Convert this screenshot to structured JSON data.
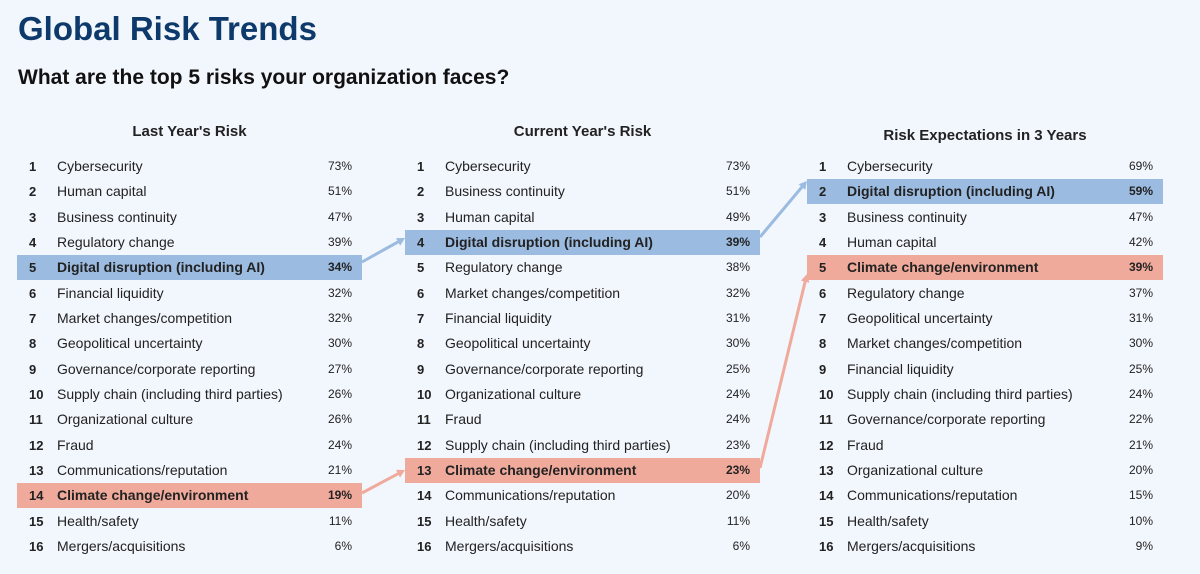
{
  "title": "Global Risk Trends",
  "subtitle": "What are the top 5 risks your organization faces?",
  "colors": {
    "highlight_blue": "#9bbbe0",
    "highlight_red": "#f0aa9c",
    "title": "#0d3a6b"
  },
  "panels": [
    {
      "header": "Last Year's Risk",
      "rows": [
        [
          "1",
          "Cybersecurity",
          "73%",
          ""
        ],
        [
          "2",
          "Human capital",
          "51%",
          ""
        ],
        [
          "3",
          "Business continuity",
          "47%",
          ""
        ],
        [
          "4",
          "Regulatory change",
          "39%",
          ""
        ],
        [
          "5",
          "Digital disruption (including AI)",
          "34%",
          "blue"
        ],
        [
          "6",
          "Financial liquidity",
          "32%",
          ""
        ],
        [
          "7",
          "Market changes/competition",
          "32%",
          ""
        ],
        [
          "8",
          "Geopolitical uncertainty",
          "30%",
          ""
        ],
        [
          "9",
          "Governance/corporate reporting",
          "27%",
          ""
        ],
        [
          "10",
          "Supply chain (including third parties)",
          "26%",
          ""
        ],
        [
          "11",
          "Organizational culture",
          "26%",
          ""
        ],
        [
          "12",
          "Fraud",
          "24%",
          ""
        ],
        [
          "13",
          "Communications/reputation",
          "21%",
          ""
        ],
        [
          "14",
          "Climate change/environment",
          "19%",
          "red"
        ],
        [
          "15",
          "Health/safety",
          "11%",
          ""
        ],
        [
          "16",
          "Mergers/acquisitions",
          "6%",
          ""
        ]
      ]
    },
    {
      "header": "Current Year's Risk",
      "rows": [
        [
          "1",
          "Cybersecurity",
          "73%",
          ""
        ],
        [
          "2",
          "Business continuity",
          "51%",
          ""
        ],
        [
          "3",
          "Human capital",
          "49%",
          ""
        ],
        [
          "4",
          "Digital disruption (including AI)",
          "39%",
          "blue"
        ],
        [
          "5",
          "Regulatory change",
          "38%",
          ""
        ],
        [
          "6",
          "Market changes/competition",
          "32%",
          ""
        ],
        [
          "7",
          "Financial liquidity",
          "31%",
          ""
        ],
        [
          "8",
          "Geopolitical uncertainty",
          "30%",
          ""
        ],
        [
          "9",
          "Governance/corporate reporting",
          "25%",
          ""
        ],
        [
          "10",
          "Organizational culture",
          "24%",
          ""
        ],
        [
          "11",
          "Fraud",
          "24%",
          ""
        ],
        [
          "12",
          "Supply chain (including third parties)",
          "23%",
          ""
        ],
        [
          "13",
          "Climate change/environment",
          "23%",
          "red"
        ],
        [
          "14",
          "Communications/reputation",
          "20%",
          ""
        ],
        [
          "15",
          "Health/safety",
          "11%",
          ""
        ],
        [
          "16",
          "Mergers/acquisitions",
          "6%",
          ""
        ]
      ]
    },
    {
      "header": "Risk Expectations in 3 Years",
      "rows": [
        [
          "1",
          "Cybersecurity",
          "69%",
          ""
        ],
        [
          "2",
          "Digital disruption (including AI)",
          "59%",
          "blue"
        ],
        [
          "3",
          "Business continuity",
          "47%",
          ""
        ],
        [
          "4",
          "Human capital",
          "42%",
          ""
        ],
        [
          "5",
          "Climate change/environment",
          "39%",
          "red"
        ],
        [
          "6",
          "Regulatory change",
          "37%",
          ""
        ],
        [
          "7",
          "Geopolitical uncertainty",
          "31%",
          ""
        ],
        [
          "8",
          "Market changes/competition",
          "30%",
          ""
        ],
        [
          "9",
          "Financial liquidity",
          "25%",
          ""
        ],
        [
          "10",
          "Supply chain (including third parties)",
          "24%",
          ""
        ],
        [
          "11",
          "Governance/corporate reporting",
          "22%",
          ""
        ],
        [
          "12",
          "Fraud",
          "21%",
          ""
        ],
        [
          "13",
          "Organizational culture",
          "20%",
          ""
        ],
        [
          "14",
          "Communications/reputation",
          "15%",
          ""
        ],
        [
          "15",
          "Health/safety",
          "10%",
          ""
        ],
        [
          "16",
          "Mergers/acquisitions",
          "9%",
          ""
        ]
      ]
    }
  ]
}
